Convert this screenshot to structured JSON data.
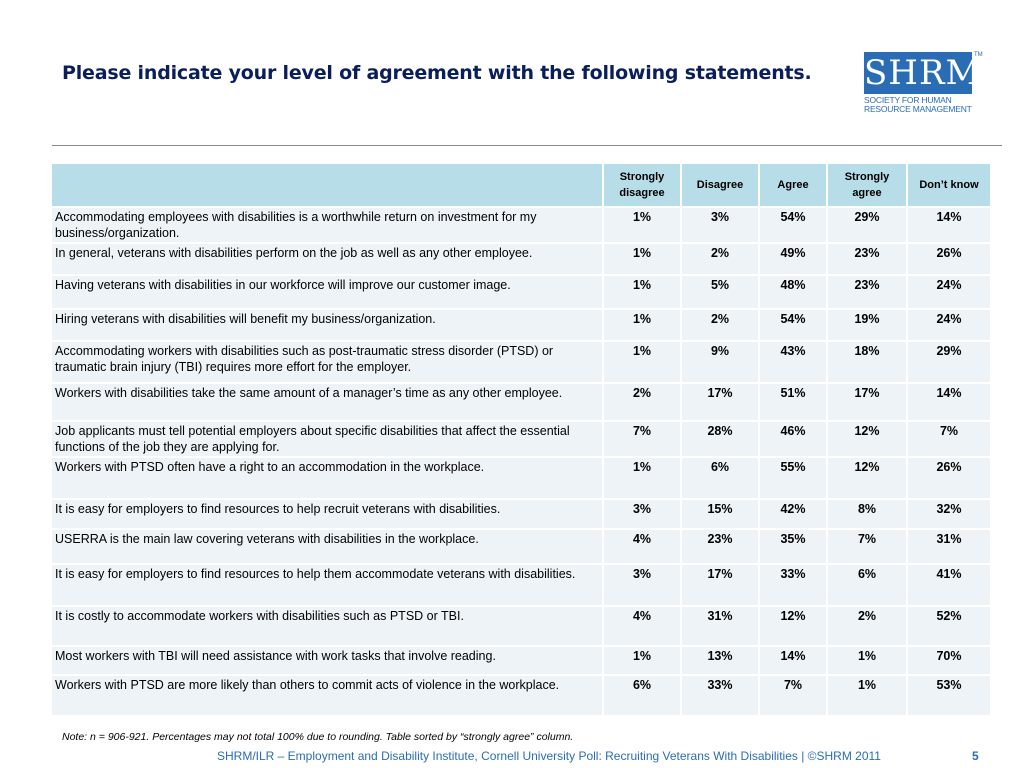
{
  "title": "Please indicate your level of agreement with the following statements.",
  "logo": {
    "text": "SHRM",
    "tm": "TM",
    "sub_line1": "SOCIETY FOR HUMAN",
    "sub_line2": "RESOURCE MANAGEMENT"
  },
  "table": {
    "columns": [
      "",
      "Strongly disagree",
      "Disagree",
      "Agree",
      "Strongly agree",
      "Don’t know"
    ],
    "rows": [
      {
        "statement": "Accommodating employees with disabilities is a worthwhile return on investment for my business/organization.",
        "values": [
          "1%",
          "3%",
          "54%",
          "29%",
          "14%"
        ]
      },
      {
        "statement": "In general, veterans with disabilities perform on the job as well as any other employee.",
        "values": [
          "1%",
          "2%",
          "49%",
          "23%",
          "26%"
        ]
      },
      {
        "statement": "Having veterans with disabilities in our workforce will improve our customer image.",
        "values": [
          "1%",
          "5%",
          "48%",
          "23%",
          "24%"
        ]
      },
      {
        "statement": "Hiring veterans with disabilities will benefit my business/organization.",
        "values": [
          "1%",
          "2%",
          "54%",
          "19%",
          "24%"
        ]
      },
      {
        "statement": "Accommodating workers with disabilities such as post-traumatic stress disorder (PTSD) or traumatic brain injury (TBI) requires more effort for the employer.",
        "values": [
          "1%",
          "9%",
          "43%",
          "18%",
          "29%"
        ]
      },
      {
        "statement": "Workers with disabilities take the same amount of a manager’s time as any other employee.",
        "values": [
          "2%",
          "17%",
          "51%",
          "17%",
          "14%"
        ]
      },
      {
        "statement": "Job applicants must tell potential employers about specific disabilities that affect the essential functions of the job they are applying for.",
        "values": [
          "7%",
          "28%",
          "46%",
          "12%",
          "7%"
        ]
      },
      {
        "statement": "Workers with PTSD often have a right to an accommodation in the workplace.",
        "values": [
          "1%",
          "6%",
          "55%",
          "12%",
          "26%"
        ]
      },
      {
        "statement": "It is easy for employers to find resources to help recruit veterans with disabilities.",
        "values": [
          "3%",
          "15%",
          "42%",
          "8%",
          "32%"
        ]
      },
      {
        "statement": "USERRA is the main law covering veterans with disabilities in the workplace.",
        "values": [
          "4%",
          "23%",
          "35%",
          "7%",
          "31%"
        ]
      },
      {
        "statement": "It is easy for employers to find resources to help them accommodate veterans with disabilities.",
        "values": [
          "3%",
          "17%",
          "33%",
          "6%",
          "41%"
        ]
      },
      {
        "statement": "It is costly to accommodate workers with disabilities such as PTSD or TBI.",
        "values": [
          "4%",
          "31%",
          "12%",
          "2%",
          "52%"
        ]
      },
      {
        "statement": "Most workers with TBI will need assistance with work tasks that involve reading.",
        "values": [
          "1%",
          "13%",
          "14%",
          "1%",
          "70%"
        ]
      },
      {
        "statement": "Workers with PTSD are more likely than others to commit acts of violence in the workplace.",
        "values": [
          "6%",
          "33%",
          "7%",
          "1%",
          "53%"
        ]
      }
    ]
  },
  "note": "Note: n = 906-921. Percentages may not total 100% due to rounding.  Table sorted by “strongly agree” column.",
  "footer": "SHRM/ILR –  Employment and Disability Institute, Cornell University Poll: Recruiting Veterans With Disabilities | ©SHRM 2011",
  "page_number": "5",
  "colors": {
    "title": "#0b1e5c",
    "header_bg": "#b7dde8",
    "row_bg": "#eef3f8",
    "brand_blue": "#2a6db4"
  }
}
